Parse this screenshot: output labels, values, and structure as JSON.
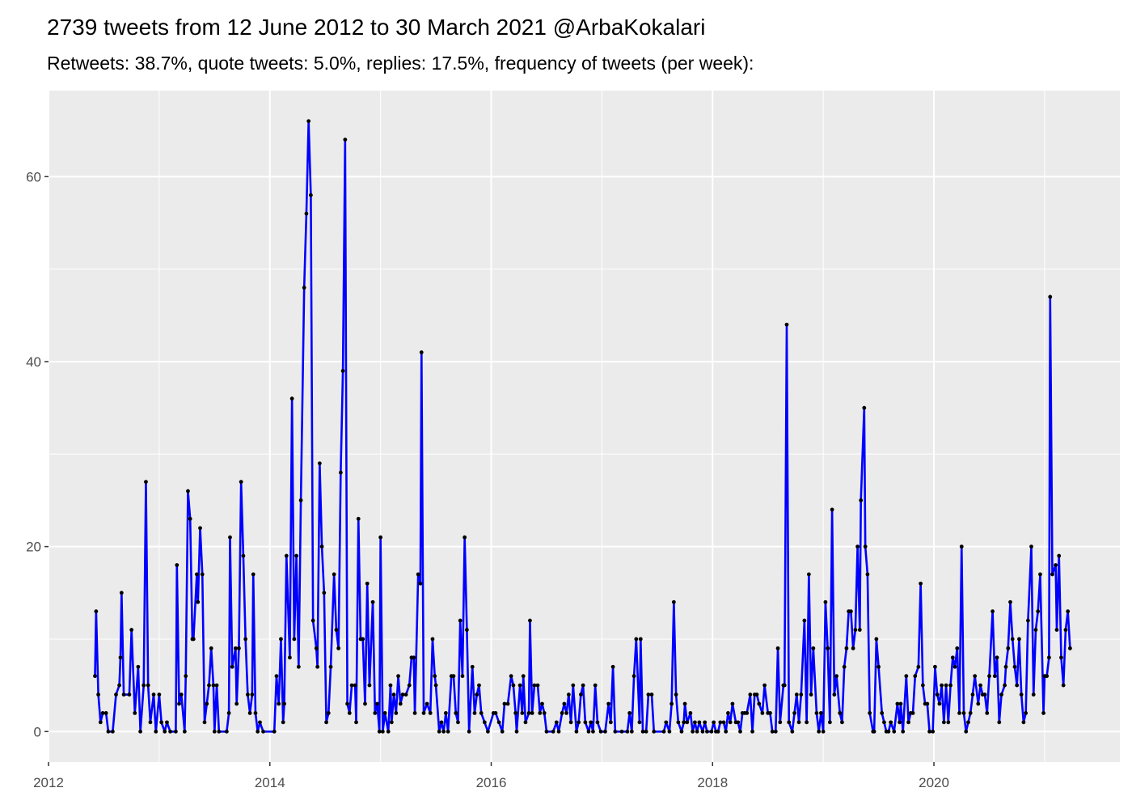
{
  "chart_data": {
    "type": "line",
    "title": "2739 tweets from 12 June 2012 to 30 March 2021 @ArbaKokalari",
    "subtitle": "Retweets: 38.7%, quote tweets: 5.0%, replies: 17.5%, frequency of tweets (per week):",
    "x": [
      2012.42,
      2012.43,
      2012.45,
      2012.47,
      2012.49,
      2012.52,
      2012.54,
      2012.58,
      2012.61,
      2012.64,
      2012.65,
      2012.66,
      2012.68,
      2012.73,
      2012.75,
      2012.78,
      2012.81,
      2012.83,
      2012.86,
      2012.88,
      2012.9,
      2012.92,
      2012.95,
      2012.97,
      2013.0,
      2013.02,
      2013.05,
      2013.07,
      2013.1,
      2013.15,
      2013.16,
      2013.18,
      2013.2,
      2013.23,
      2013.24,
      2013.26,
      2013.28,
      2013.3,
      2013.31,
      2013.34,
      2013.35,
      2013.37,
      2013.39,
      2013.41,
      2013.43,
      2013.45,
      2013.47,
      2013.49,
      2013.5,
      2013.52,
      2013.54,
      2013.61,
      2013.63,
      2013.64,
      2013.66,
      2013.69,
      2013.7,
      2013.72,
      2013.74,
      2013.76,
      2013.78,
      2013.8,
      2013.82,
      2013.84,
      2013.85,
      2013.87,
      2013.89,
      2013.91,
      2013.94,
      2014.04,
      2014.06,
      2014.08,
      2014.1,
      2014.12,
      2014.13,
      2014.15,
      2014.18,
      2014.2,
      2014.22,
      2014.24,
      2014.26,
      2014.28,
      2014.31,
      2014.33,
      2014.35,
      2014.37,
      2014.39,
      2014.42,
      2014.43,
      2014.45,
      2014.47,
      2014.49,
      2014.51,
      2014.53,
      2014.55,
      2014.58,
      2014.6,
      2014.62,
      2014.64,
      2014.66,
      2014.68,
      2014.7,
      2014.72,
      2014.74,
      2014.77,
      2014.78,
      2014.8,
      2014.82,
      2014.84,
      2014.86,
      2014.88,
      2014.9,
      2014.93,
      2014.95,
      2014.97,
      2014.99,
      2015.0,
      2015.02,
      2015.04,
      2015.07,
      2015.09,
      2015.1,
      2015.12,
      2015.14,
      2015.16,
      2015.18,
      2015.2,
      2015.23,
      2015.26,
      2015.28,
      2015.3,
      2015.31,
      2015.34,
      2015.36,
      2015.37,
      2015.39,
      2015.42,
      2015.45,
      2015.47,
      2015.49,
      2015.5,
      2015.53,
      2015.55,
      2015.57,
      2015.59,
      2015.61,
      2015.64,
      2015.66,
      2015.68,
      2015.7,
      2015.72,
      2015.74,
      2015.76,
      2015.78,
      2015.8,
      2015.83,
      2015.85,
      2015.87,
      2015.89,
      2015.91,
      2015.94,
      2015.97,
      2016.02,
      2016.04,
      2016.07,
      2016.1,
      2016.12,
      2016.15,
      2016.18,
      2016.2,
      2016.22,
      2016.23,
      2016.26,
      2016.28,
      2016.29,
      2016.31,
      2016.34,
      2016.35,
      2016.37,
      2016.39,
      2016.42,
      2016.44,
      2016.46,
      2016.48,
      2016.5,
      2016.56,
      2016.59,
      2016.61,
      2016.64,
      2016.66,
      2016.68,
      2016.7,
      2016.72,
      2016.74,
      2016.77,
      2016.79,
      2016.81,
      2016.83,
      2016.85,
      2016.88,
      2016.9,
      2016.92,
      2016.94,
      2016.96,
      2016.99,
      2017.03,
      2017.06,
      2017.08,
      2017.1,
      2017.12,
      2017.18,
      2017.23,
      2017.25,
      2017.27,
      2017.29,
      2017.31,
      2017.34,
      2017.35,
      2017.37,
      2017.4,
      2017.42,
      2017.45,
      2017.47,
      2017.56,
      2017.58,
      2017.61,
      2017.63,
      2017.65,
      2017.67,
      2017.69,
      2017.72,
      2017.74,
      2017.75,
      2017.77,
      2017.8,
      2017.82,
      2017.84,
      2017.86,
      2017.88,
      2017.91,
      2017.93,
      2017.95,
      2017.99,
      2018.01,
      2018.03,
      2018.05,
      2018.07,
      2018.1,
      2018.12,
      2018.14,
      2018.16,
      2018.18,
      2018.21,
      2018.23,
      2018.25,
      2018.27,
      2018.29,
      2018.31,
      2018.34,
      2018.36,
      2018.38,
      2018.4,
      2018.42,
      2018.45,
      2018.47,
      2018.5,
      2018.52,
      2018.54,
      2018.57,
      2018.59,
      2018.61,
      2018.64,
      2018.65,
      2018.67,
      2018.69,
      2018.72,
      2018.74,
      2018.76,
      2018.78,
      2018.8,
      2018.83,
      2018.85,
      2018.87,
      2018.89,
      2018.91,
      2018.94,
      2018.96,
      2018.98,
      2019.0,
      2019.02,
      2019.04,
      2019.06,
      2019.08,
      2019.1,
      2019.12,
      2019.15,
      2019.17,
      2019.19,
      2019.21,
      2019.23,
      2019.25,
      2019.27,
      2019.29,
      2019.31,
      2019.33,
      2019.34,
      2019.37,
      2019.38,
      2019.4,
      2019.42,
      2019.45,
      2019.46,
      2019.48,
      2019.5,
      2019.53,
      2019.55,
      2019.57,
      2019.59,
      2019.61,
      2019.64,
      2019.67,
      2019.69,
      2019.7,
      2019.72,
      2019.75,
      2019.77,
      2019.79,
      2019.81,
      2019.83,
      2019.86,
      2019.88,
      2019.9,
      2019.92,
      2019.94,
      2019.96,
      2019.99,
      2020.01,
      2020.03,
      2020.05,
      2020.07,
      2020.09,
      2020.11,
      2020.13,
      2020.15,
      2020.17,
      2020.19,
      2020.21,
      2020.23,
      2020.25,
      2020.27,
      2020.29,
      2020.31,
      2020.33,
      2020.35,
      2020.37,
      2020.4,
      2020.42,
      2020.44,
      2020.46,
      2020.48,
      2020.5,
      2020.53,
      2020.55,
      2020.57,
      2020.59,
      2020.61,
      2020.64,
      2020.65,
      2020.67,
      2020.69,
      2020.71,
      2020.73,
      2020.75,
      2020.77,
      2020.79,
      2020.81,
      2020.83,
      2020.85,
      2020.88,
      2020.9,
      2020.92,
      2020.94,
      2020.96,
      2020.99,
      2021.0,
      2021.02,
      2021.04,
      2021.05,
      2021.07,
      2021.1,
      2021.11,
      2021.13,
      2021.15,
      2021.17,
      2021.19,
      2021.21,
      2021.23
    ],
    "series": [
      {
        "color": "#0000ff",
        "marker_color": "#000000",
        "values": [
          6,
          13,
          4,
          1,
          2,
          2,
          0,
          0,
          4,
          5,
          8,
          15,
          4,
          4,
          11,
          2,
          7,
          0,
          5,
          27,
          5,
          1,
          4,
          0,
          4,
          1,
          0,
          1,
          0,
          0,
          18,
          3,
          4,
          0,
          6,
          26,
          23,
          10,
          10,
          17,
          14,
          22,
          17,
          1,
          3,
          5,
          9,
          5,
          0,
          5,
          0,
          0,
          2,
          21,
          7,
          9,
          3,
          9,
          27,
          19,
          10,
          4,
          2,
          4,
          17,
          2,
          0,
          1,
          0,
          0,
          6,
          3,
          10,
          1,
          3,
          19,
          8,
          36,
          10,
          19,
          7,
          25,
          48,
          56,
          66,
          58,
          12,
          9,
          7,
          29,
          20,
          15,
          1,
          2,
          7,
          17,
          11,
          9,
          28,
          39,
          64,
          3,
          2,
          5,
          5,
          1,
          23,
          10,
          10,
          3,
          16,
          5,
          14,
          2,
          3,
          0,
          21,
          0,
          2,
          0,
          5,
          1,
          4,
          2,
          6,
          3,
          4,
          4,
          5,
          8,
          8,
          2,
          17,
          16,
          41,
          2,
          3,
          2,
          10,
          6,
          5,
          0,
          1,
          0,
          2,
          0,
          6,
          6,
          2,
          1,
          12,
          6,
          21,
          11,
          0,
          7,
          2,
          4,
          5,
          2,
          1,
          0,
          2,
          2,
          1,
          0,
          3,
          3,
          6,
          5,
          2,
          0,
          5,
          2,
          6,
          1,
          2,
          12,
          2,
          5,
          5,
          2,
          3,
          2,
          0,
          0,
          1,
          0,
          2,
          3,
          2,
          4,
          1,
          5,
          0,
          1,
          4,
          5,
          1,
          0,
          1,
          0,
          5,
          1,
          0,
          0,
          3,
          1,
          7,
          0,
          0,
          0,
          2,
          0,
          6,
          10,
          1,
          10,
          0,
          0,
          4,
          4,
          0,
          0,
          1,
          0,
          3,
          14,
          4,
          1,
          0,
          1,
          3,
          1,
          2,
          0,
          1,
          0,
          1,
          0,
          1,
          0,
          0,
          1,
          0,
          0,
          1,
          1,
          0,
          2,
          1,
          3,
          1,
          1,
          0,
          2,
          2,
          2,
          4,
          0,
          4,
          4,
          3,
          2,
          5,
          2,
          2,
          0,
          0,
          9,
          1,
          5,
          5,
          44,
          1,
          0,
          2,
          4,
          1,
          4,
          12,
          1,
          17,
          4,
          9,
          2,
          0,
          2,
          0,
          14,
          9,
          1,
          24,
          4,
          6,
          2,
          1,
          7,
          9,
          13,
          13,
          9,
          11,
          20,
          11,
          25,
          35,
          20,
          17,
          2,
          0,
          0,
          10,
          7,
          2,
          1,
          0,
          0,
          1,
          0,
          3,
          1,
          3,
          0,
          6,
          1,
          2,
          2,
          6,
          7,
          16,
          5,
          3,
          3,
          0,
          0,
          7,
          4,
          3,
          5,
          1,
          5,
          1,
          5,
          8,
          7,
          9,
          2,
          20,
          2,
          0,
          1,
          2,
          4,
          6,
          3,
          5,
          4,
          4,
          2,
          6,
          13,
          6,
          8,
          1,
          4,
          5,
          7,
          9,
          14,
          10,
          7,
          5,
          10,
          4,
          1,
          2,
          12,
          20,
          4,
          11,
          13,
          17,
          2,
          6,
          6,
          8,
          47,
          17,
          18,
          11,
          19,
          8,
          5,
          11,
          13,
          9
        ]
      }
    ],
    "xlim": [
      2012,
      2021.68
    ],
    "ylim": [
      -3.3,
      69.3
    ],
    "xticks": [
      2012,
      2014,
      2016,
      2018,
      2020
    ],
    "yticks": [
      0,
      20,
      40,
      60
    ],
    "x_minor_grid": [
      2013,
      2015,
      2017,
      2019,
      2021
    ],
    "y_minor_grid": [
      10,
      30,
      50
    ],
    "grid": true
  }
}
